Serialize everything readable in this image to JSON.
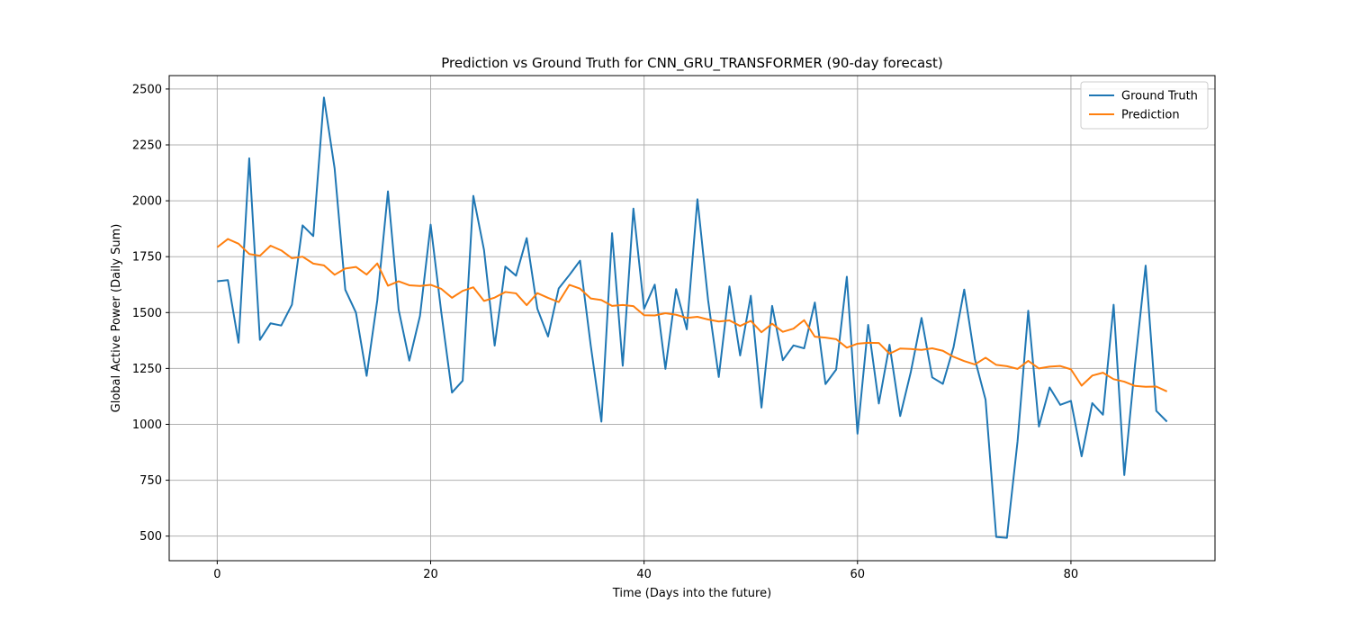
{
  "chart_data": {
    "type": "line",
    "title": "Prediction vs Ground Truth for CNN_GRU_TRANSFORMER (90-day forecast)",
    "xlabel": "Time (Days into the future)",
    "ylabel": "Global Active Power (Daily Sum)",
    "xlim": [
      -4.5,
      93.5
    ],
    "ylim": [
      390,
      2560
    ],
    "xticks": [
      0,
      20,
      40,
      60,
      80
    ],
    "yticks": [
      500,
      750,
      1000,
      1250,
      1500,
      1750,
      2000,
      2250,
      2500
    ],
    "grid": true,
    "legend_position": "upper-right",
    "series": [
      {
        "name": "Ground Truth",
        "color": "#1f77b4",
        "values": [
          1640,
          1645,
          1365,
          2190,
          1378,
          1452,
          1442,
          1535,
          1890,
          1842,
          2462,
          2145,
          1602,
          1500,
          1217,
          1555,
          2042,
          1513,
          1285,
          1485,
          1893,
          1500,
          1142,
          1195,
          2022,
          1780,
          1352,
          1706,
          1665,
          1833,
          1517,
          1393,
          1608,
          1668,
          1732,
          1353,
          1012,
          1855,
          1262,
          1965,
          1517,
          1625,
          1248,
          1605,
          1425,
          2007,
          1555,
          1212,
          1617,
          1308,
          1575,
          1075,
          1530,
          1287,
          1353,
          1340,
          1545,
          1180,
          1245,
          1660,
          958,
          1445,
          1093,
          1356,
          1037,
          1235,
          1476,
          1210,
          1181,
          1345,
          1603,
          1292,
          1110,
          496,
          492,
          925,
          1508,
          990,
          1165,
          1087,
          1105,
          857,
          1095,
          1043,
          1535,
          773,
          1265,
          1710,
          1060,
          1012
        ]
      },
      {
        "name": "Prediction",
        "color": "#ff7f0e",
        "values": [
          1792,
          1829,
          1808,
          1762,
          1754,
          1799,
          1778,
          1743,
          1750,
          1719,
          1711,
          1669,
          1697,
          1704,
          1670,
          1720,
          1620,
          1640,
          1622,
          1619,
          1624,
          1606,
          1566,
          1597,
          1613,
          1552,
          1567,
          1592,
          1586,
          1533,
          1587,
          1566,
          1547,
          1624,
          1607,
          1563,
          1556,
          1530,
          1534,
          1529,
          1488,
          1487,
          1497,
          1490,
          1476,
          1481,
          1469,
          1460,
          1465,
          1440,
          1463,
          1412,
          1450,
          1414,
          1428,
          1466,
          1392,
          1388,
          1381,
          1343,
          1361,
          1365,
          1364,
          1316,
          1339,
          1337,
          1333,
          1340,
          1329,
          1302,
          1283,
          1268,
          1298,
          1266,
          1260,
          1248,
          1284,
          1250,
          1258,
          1261,
          1246,
          1173,
          1218,
          1231,
          1202,
          1191,
          1172,
          1168,
          1169,
          1147
        ]
      }
    ]
  }
}
